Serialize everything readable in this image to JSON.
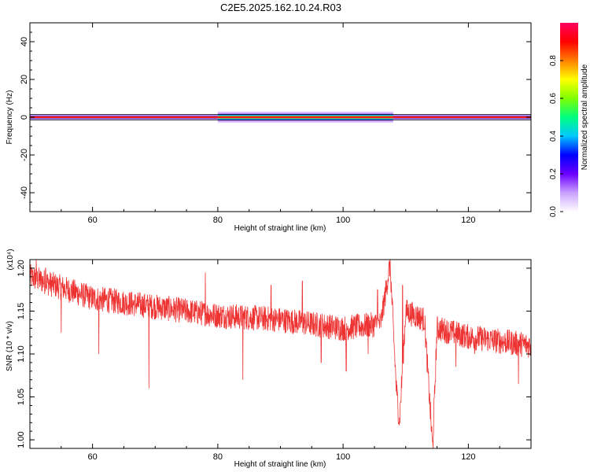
{
  "title": "C2E5.2025.162.10.24.R03",
  "spectrogram": {
    "type": "heatmap",
    "xlabel": "Height of straight line (km)",
    "ylabel": "Frequency (Hz)",
    "xlim": [
      50,
      130
    ],
    "ylim": [
      -50,
      50
    ],
    "x_ticks": [
      "60",
      "80",
      "100",
      "120"
    ],
    "y_ticks": [
      "40",
      "20",
      "0",
      "-20",
      "-40"
    ],
    "center_frequency": 0,
    "colorbar": {
      "label": "Normalized spectral amplitude",
      "range": [
        0,
        1
      ],
      "ticks": [
        "0.0",
        "0.2",
        "0.4",
        "0.6",
        "0.8"
      ],
      "colors": [
        "#ffffff",
        "#c9a0ff",
        "#6a00ff",
        "#0000ff",
        "#00c8ff",
        "#00ff80",
        "#80ff00",
        "#ffff00",
        "#ff8000",
        "#ff0000",
        "#ff0060"
      ]
    },
    "band": [
      {
        "x": [
          50,
          80
        ],
        "halfwidth_hz": 1.5
      },
      {
        "x": [
          80,
          108
        ],
        "halfwidth_hz": 3.0
      },
      {
        "x": [
          108,
          130
        ],
        "halfwidth_hz": 1.5
      }
    ]
  },
  "snr_chart": {
    "type": "line",
    "xlabel": "Height of straight line (km)",
    "ylabel": "SNR (10 * v/v)",
    "multiplier": "(x10⁴)",
    "xlim": [
      50,
      130
    ],
    "ylim": [
      0.99,
      1.21
    ],
    "x_ticks": [
      "60",
      "80",
      "100",
      "120"
    ],
    "y_ticks": [
      "1.00",
      "1.05",
      "1.10",
      "1.15",
      "1.20"
    ],
    "color": "#ee3333",
    "trend": [
      {
        "x": 50,
        "y": 1.19
      },
      {
        "x": 60,
        "y": 1.165
      },
      {
        "x": 70,
        "y": 1.155
      },
      {
        "x": 80,
        "y": 1.145
      },
      {
        "x": 90,
        "y": 1.14
      },
      {
        "x": 100,
        "y": 1.13
      },
      {
        "x": 106,
        "y": 1.135
      },
      {
        "x": 107.5,
        "y": 1.205
      },
      {
        "x": 108.5,
        "y": 1.06
      },
      {
        "x": 109,
        "y": 1.02
      },
      {
        "x": 110,
        "y": 1.15
      },
      {
        "x": 113,
        "y": 1.14
      },
      {
        "x": 114.3,
        "y": 0.99
      },
      {
        "x": 115,
        "y": 1.13
      },
      {
        "x": 120,
        "y": 1.12
      },
      {
        "x": 130,
        "y": 1.11
      }
    ],
    "spikes": [
      {
        "x": 51,
        "y": 1.21
      },
      {
        "x": 52.5,
        "y": 1.2
      },
      {
        "x": 55,
        "y": 1.125
      },
      {
        "x": 61,
        "y": 1.1
      },
      {
        "x": 69,
        "y": 1.06
      },
      {
        "x": 78,
        "y": 1.195
      },
      {
        "x": 84,
        "y": 1.07
      },
      {
        "x": 88.5,
        "y": 1.18
      },
      {
        "x": 93.5,
        "y": 1.185
      },
      {
        "x": 96.5,
        "y": 1.09
      },
      {
        "x": 100.5,
        "y": 1.08
      },
      {
        "x": 104,
        "y": 1.1
      },
      {
        "x": 105.5,
        "y": 1.175
      },
      {
        "x": 109.5,
        "y": 1.18
      },
      {
        "x": 118,
        "y": 1.085
      },
      {
        "x": 121,
        "y": 1.1
      },
      {
        "x": 128,
        "y": 1.065
      }
    ]
  }
}
